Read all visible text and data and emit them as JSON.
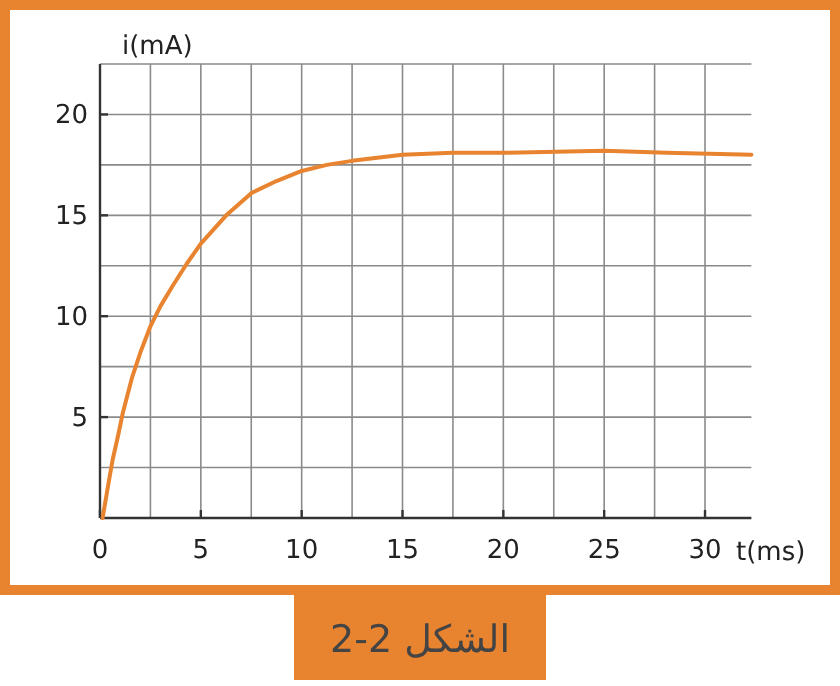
{
  "chart_data": {
    "type": "line",
    "xlabel": "t(ms)",
    "ylabel": "i(mA)",
    "annotations": [
      "الشكل 2-2"
    ],
    "xlim": [
      0,
      32.3
    ],
    "ylim": [
      0,
      22.5
    ],
    "xticks": [
      0,
      5,
      10,
      15,
      20,
      25,
      30
    ],
    "yticks": [
      5,
      10,
      15,
      20
    ],
    "grid": true,
    "series": [
      {
        "color": "#e8832f",
        "x": [
          0.13,
          0.4,
          0.63,
          0.9,
          1.13,
          1.6,
          2,
          2.5,
          3,
          3.6,
          4.3,
          5,
          6.26,
          7.5,
          8.75,
          10,
          11.25,
          12.5,
          15,
          17.5,
          20,
          25,
          28.1,
          32.3
        ],
        "values": [
          0,
          1.6,
          2.9,
          4.1,
          5.2,
          7.0,
          8.2,
          9.5,
          10.5,
          11.5,
          12.6,
          13.6,
          15.0,
          16.1,
          16.7,
          17.2,
          17.5,
          17.7,
          18.0,
          18.1,
          18.1,
          18.2,
          18.1,
          18.0
        ]
      }
    ]
  }
}
